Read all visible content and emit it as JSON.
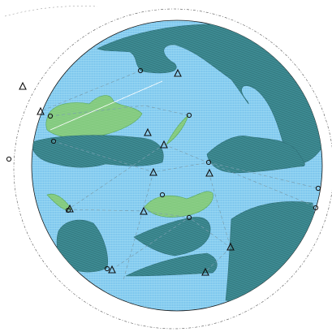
{
  "colors": {
    "ocean": "#8fd3f2",
    "ocean_hatch": "#5fb3e6",
    "ocean_cross": "#a9ddf5",
    "rock": "#3f8e95",
    "rock_hatch": "#2f6f78",
    "grass": "#8ed08a",
    "grass_hatch": "#6fbf6b",
    "outline": "#1a1a1a",
    "route": "#7a9fb0"
  },
  "map": {
    "frame_icon": "dotted-orbit-ring",
    "waypoint_icon": "triangle-outline",
    "node_icon": "circle-outline"
  }
}
